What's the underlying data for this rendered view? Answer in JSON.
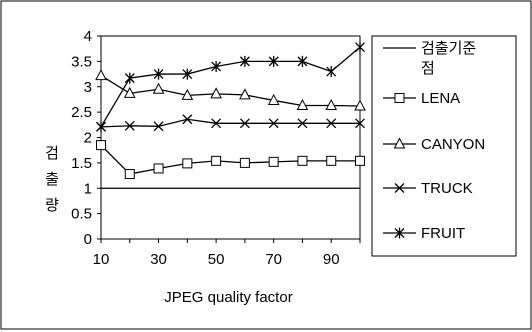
{
  "chart_data": {
    "type": "line",
    "x": [
      10,
      20,
      30,
      40,
      50,
      60,
      70,
      80,
      90,
      100
    ],
    "x_tick_labels": [
      "10",
      "30",
      "50",
      "70",
      "90"
    ],
    "x_tick_values": [
      10,
      30,
      50,
      70,
      90
    ],
    "y_tick_labels": [
      "0",
      "0.5",
      "1",
      "1.5",
      "2",
      "2.5",
      "3",
      "3.5",
      "4"
    ],
    "y_tick_values": [
      0,
      0.5,
      1,
      1.5,
      2,
      2.5,
      3,
      3.5,
      4
    ],
    "xlim": [
      10,
      100
    ],
    "ylim": [
      0,
      4
    ],
    "xlabel": "JPEG quality factor",
    "ylabel_chars": [
      "검",
      "출",
      "량"
    ],
    "grid": false,
    "legend_position": "right",
    "series": [
      {
        "name": "검출기준점",
        "name_lines": [
          "검출기준",
          "점"
        ],
        "marker": "none",
        "values": [
          1,
          1,
          1,
          1,
          1,
          1,
          1,
          1,
          1,
          1
        ]
      },
      {
        "name": "LENA",
        "marker": "square",
        "values": [
          1.85,
          1.28,
          1.39,
          1.49,
          1.54,
          1.5,
          1.52,
          1.54,
          1.54,
          1.54
        ]
      },
      {
        "name": "CANYON",
        "marker": "triangle",
        "values": [
          3.22,
          2.87,
          2.95,
          2.83,
          2.86,
          2.84,
          2.73,
          2.63,
          2.63,
          2.62
        ]
      },
      {
        "name": "TRUCK",
        "marker": "x",
        "values": [
          2.21,
          2.23,
          2.22,
          2.36,
          2.28,
          2.28,
          2.28,
          2.28,
          2.28,
          2.28
        ]
      },
      {
        "name": "FRUIT",
        "marker": "star",
        "values": [
          2.21,
          3.17,
          3.25,
          3.25,
          3.4,
          3.5,
          3.5,
          3.5,
          3.3,
          3.78
        ]
      }
    ]
  }
}
